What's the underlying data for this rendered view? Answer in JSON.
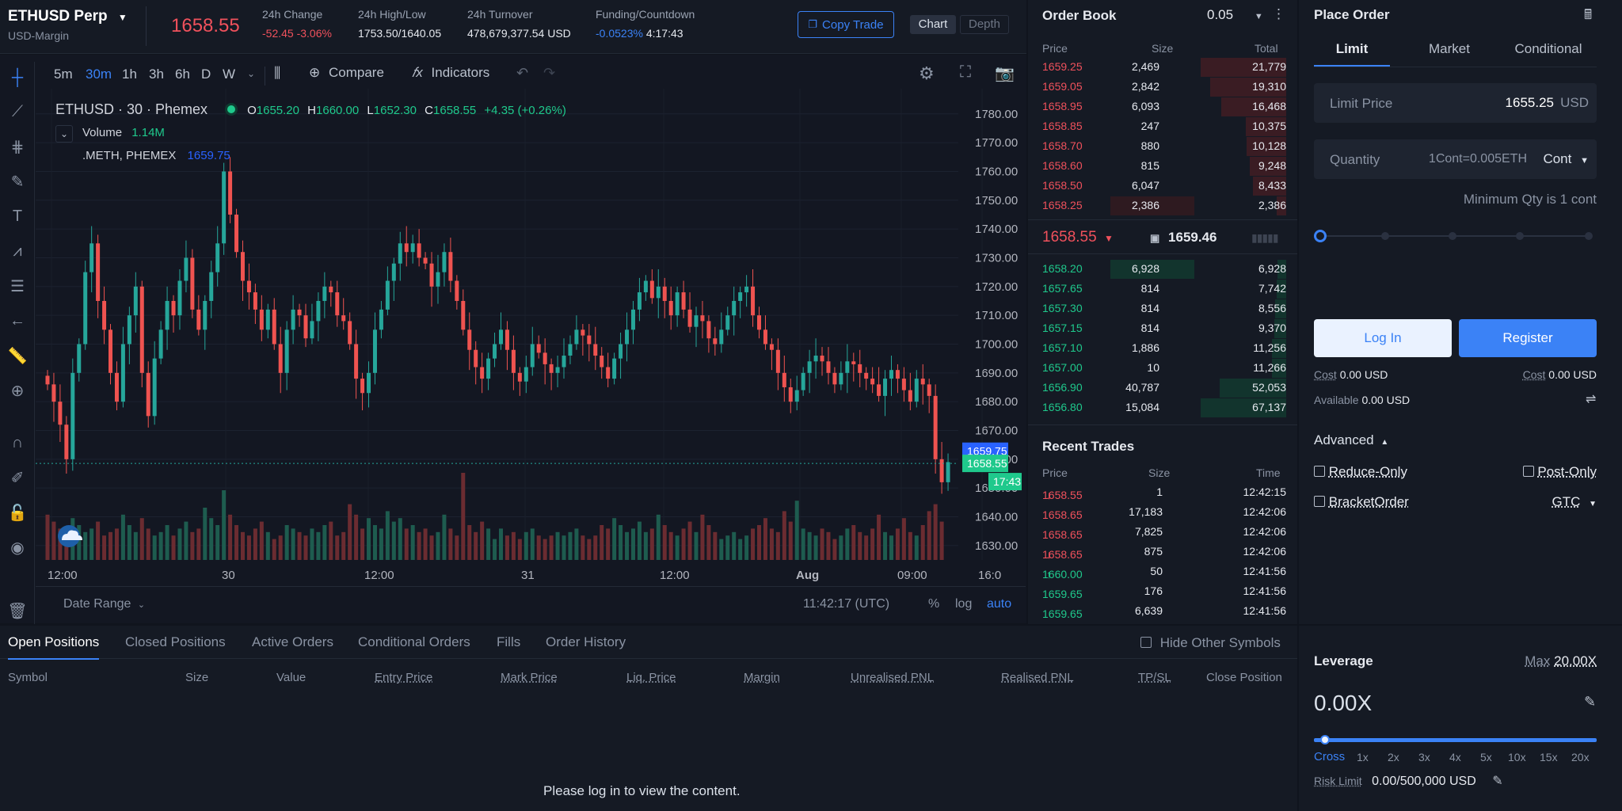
{
  "header": {
    "symbol": "ETHUSD Perp",
    "margin": "USD-Margin",
    "last_price": "1658.55",
    "stats": [
      {
        "label": "24h Change",
        "value": "-52.45 -3.06%",
        "tone": "red"
      },
      {
        "label": "24h High/Low",
        "value": "1753.50/1640.05",
        "tone": "white"
      },
      {
        "label": "24h Turnover",
        "value": "478,679,377.54 USD",
        "tone": "white"
      },
      {
        "label": "Funding/Countdown",
        "value_a": "-0.0523%",
        "value_b": "4:17:43"
      }
    ],
    "copy_trade": "Copy Trade",
    "chart_tab": "Chart",
    "depth_tab": "Depth"
  },
  "chart_toolbar": {
    "timeframes": [
      "5m",
      "30m",
      "1h",
      "3h",
      "6h",
      "D",
      "W"
    ],
    "active": "30m",
    "compare": "Compare",
    "indicators": "Indicators"
  },
  "legend": {
    "title": "ETHUSD · 30 · Phemex",
    "o_label": "O",
    "o": "1655.20",
    "h_label": "H",
    "h": "1660.00",
    "l_label": "L",
    "l": "1652.30",
    "c_label": "C",
    "c": "1658.55",
    "chg": "+4.35 (+0.26%)",
    "volume_label": "Volume",
    "volume": "1.14M",
    "meth_label": ".METH, PHEMEX",
    "meth": "1659.75"
  },
  "chart_data": {
    "type": "candlestick",
    "ylim": [
      1625,
      1786
    ],
    "y_ticks": [
      "1780.00",
      "1770.00",
      "1760.00",
      "1750.00",
      "1740.00",
      "1730.00",
      "1720.00",
      "1710.00",
      "1700.00",
      "1690.00",
      "1680.00",
      "1670.00",
      "1660.00",
      "1650.00",
      "1640.00",
      "1630.00"
    ],
    "x_ticks": [
      "12:00",
      "30",
      "12:00",
      "31",
      "12:00",
      "Aug",
      "09:00",
      "16:0"
    ],
    "price_tags": [
      {
        "label": "1659.75",
        "color": "#2962ff"
      },
      {
        "label": "1658.55",
        "color": "#1fc98c"
      },
      {
        "label": "17:43",
        "color": "#1fc98c"
      }
    ],
    "closes": [
      1686,
      1680,
      1672,
      1660,
      1690,
      1700,
      1725,
      1735,
      1715,
      1705,
      1690,
      1680,
      1700,
      1710,
      1720,
      1690,
      1675,
      1695,
      1705,
      1715,
      1710,
      1722,
      1730,
      1712,
      1705,
      1715,
      1725,
      1735,
      1760,
      1745,
      1732,
      1722,
      1718,
      1712,
      1705,
      1712,
      1700,
      1690,
      1705,
      1712,
      1710,
      1702,
      1708,
      1715,
      1720,
      1718,
      1710,
      1708,
      1700,
      1688,
      1683,
      1690,
      1705,
      1712,
      1722,
      1728,
      1735,
      1732,
      1735,
      1730,
      1728,
      1720,
      1725,
      1732,
      1722,
      1715,
      1705,
      1698,
      1692,
      1688,
      1695,
      1700,
      1705,
      1698,
      1690,
      1687,
      1692,
      1700,
      1697,
      1693,
      1690,
      1692,
      1696,
      1700,
      1705,
      1703,
      1700,
      1696,
      1692,
      1688,
      1695,
      1700,
      1705,
      1712,
      1718,
      1722,
      1716,
      1720,
      1715,
      1710,
      1718,
      1712,
      1706,
      1710,
      1708,
      1702,
      1700,
      1705,
      1710,
      1715,
      1718,
      1720,
      1710,
      1705,
      1700,
      1698,
      1690,
      1685,
      1680,
      1684,
      1690,
      1694,
      1696,
      1694,
      1690,
      1686,
      1690,
      1694,
      1693,
      1690,
      1688,
      1686,
      1682,
      1688,
      1691,
      1688,
      1684,
      1680,
      1688,
      1686,
      1682,
      1660,
      1652,
      1659
    ],
    "volumes": [
      1.3,
      1.1,
      0.9,
      0.6,
      1.2,
      1.0,
      0.8,
      0.9,
      1.1,
      0.7,
      0.8,
      0.9,
      1.3,
      1.0,
      0.8,
      1.2,
      0.9,
      0.7,
      0.8,
      1.0,
      0.7,
      0.9,
      1.1,
      0.8,
      0.9,
      1.5,
      1.2,
      1.0,
      2.0,
      1.3,
      1.0,
      0.8,
      0.7,
      0.9,
      1.1,
      0.8,
      0.6,
      0.7,
      1.0,
      0.9,
      0.8,
      0.7,
      0.9,
      0.8,
      1.0,
      1.1,
      0.7,
      0.8,
      1.6,
      1.3,
      0.9,
      1.2,
      1.0,
      0.9,
      1.4,
      1.1,
      1.2,
      0.9,
      1.0,
      0.8,
      0.9,
      0.7,
      0.8,
      1.3,
      0.9,
      0.7,
      2.5,
      1.0,
      0.8,
      1.1,
      0.9,
      0.6,
      0.9,
      0.7,
      0.8,
      0.6,
      0.8,
      0.9,
      0.7,
      0.6,
      0.7,
      0.8,
      0.7,
      0.8,
      0.9,
      0.7,
      0.6,
      0.7,
      1.0,
      0.9,
      1.2,
      1.0,
      0.8,
      0.9,
      1.1,
      0.8,
      0.9,
      1.3,
      1.0,
      0.8,
      0.7,
      0.9,
      1.1,
      0.8,
      1.3,
      1.0,
      0.8,
      0.6,
      0.7,
      0.8,
      0.6,
      0.7,
      0.9,
      1.0,
      1.2,
      0.9,
      0.8,
      1.4,
      1.1,
      1.7,
      0.9,
      0.8,
      0.7,
      0.9,
      0.8,
      0.6,
      0.7,
      0.9,
      1.0,
      0.8,
      0.7,
      0.9,
      1.3,
      0.8,
      0.7,
      0.9,
      1.2,
      0.8,
      0.7,
      1.0,
      1.4,
      1.6,
      1.1
    ]
  },
  "chart_bottom": {
    "date_range": "Date Range",
    "time": "11:42:17 (UTC)",
    "pct": "%",
    "log": "log",
    "auto": "auto"
  },
  "order_book": {
    "title": "Order Book",
    "step": "0.05",
    "cols": [
      "Price",
      "Size",
      "Total"
    ],
    "asks": [
      [
        "1659.25",
        "2,469",
        "21,779"
      ],
      [
        "1659.05",
        "2,842",
        "19,310"
      ],
      [
        "1658.95",
        "6,093",
        "16,468"
      ],
      [
        "1658.85",
        "247",
        "10,375"
      ],
      [
        "1658.70",
        "880",
        "10,128"
      ],
      [
        "1658.60",
        "815",
        "9,248"
      ],
      [
        "1658.50",
        "6,047",
        "8,433"
      ],
      [
        "1658.25",
        "2,386",
        "2,386"
      ]
    ],
    "ask_totals": [
      21779,
      19310,
      16468,
      10375,
      10128,
      9248,
      8433,
      2386
    ],
    "mid_price": "1658.55",
    "mark_price": "1659.46",
    "bids": [
      [
        "1658.20",
        "6,928",
        "6,928"
      ],
      [
        "1657.65",
        "814",
        "7,742"
      ],
      [
        "1657.30",
        "814",
        "8,556"
      ],
      [
        "1657.15",
        "814",
        "9,370"
      ],
      [
        "1657.10",
        "1,886",
        "11,256"
      ],
      [
        "1657.00",
        "10",
        "11,266"
      ],
      [
        "1656.90",
        "40,787",
        "52,053"
      ],
      [
        "1656.80",
        "15,084",
        "67,137"
      ]
    ],
    "bid_totals": [
      6928,
      7742,
      8556,
      9370,
      11256,
      11266,
      52053,
      67137
    ]
  },
  "trades": {
    "title": "Recent Trades",
    "cols": [
      "Price",
      "Size",
      "Time"
    ],
    "rows": [
      [
        "1658.55",
        "1",
        "12:42:15",
        "red",
        "↓"
      ],
      [
        "1658.65",
        "17,183",
        "12:42:06",
        "red",
        ""
      ],
      [
        "1658.65",
        "7,825",
        "12:42:06",
        "red",
        ""
      ],
      [
        "1658.65",
        "875",
        "12:42:06",
        "red",
        "↓"
      ],
      [
        "1660.00",
        "50",
        "12:41:56",
        "green",
        "↑"
      ],
      [
        "1659.65",
        "176",
        "12:41:56",
        "green",
        ""
      ],
      [
        "1659.65",
        "6,639",
        "12:41:56",
        "green",
        ""
      ]
    ]
  },
  "place_order": {
    "title": "Place Order",
    "tabs": [
      "Limit",
      "Market",
      "Conditional"
    ],
    "limit_label": "Limit Price",
    "limit_value": "1655.25",
    "limit_unit": "USD",
    "qty_label": "Quantity",
    "qty_value": "1Cont=0.005ETH",
    "qty_unit": "Cont",
    "min_qty": "Minimum Qty is 1 cont",
    "login": "Log In",
    "register": "Register",
    "cost_label": "Cost",
    "cost_left": "0.00 USD",
    "cost_right": "0.00 USD",
    "available_label": "Available",
    "available": "0.00 USD",
    "advanced": "Advanced",
    "reduce_only": "Reduce-Only",
    "post_only": "Post-Only",
    "bracket": "BracketOrder",
    "gtc": "GTC"
  },
  "positions": {
    "tabs": [
      "Open Positions",
      "Closed Positions",
      "Active Orders",
      "Conditional Orders",
      "Fills",
      "Order History"
    ],
    "hide_other": "Hide Other Symbols",
    "cols": [
      "Symbol",
      "Size",
      "Value",
      "Entry Price",
      "Mark Price",
      "Liq. Price",
      "Margin",
      "Unrealised PNL",
      "Realised PNL",
      "TP/SL",
      "Close Position"
    ],
    "empty": "Please log in to view the content."
  },
  "leverage": {
    "title": "Leverage",
    "max_label": "Max",
    "max": "20.00X",
    "value": "0.00X",
    "cross": "Cross",
    "ticks": [
      "1x",
      "2x",
      "3x",
      "4x",
      "5x",
      "10x",
      "15x",
      "20x"
    ],
    "risk_label": "Risk Limit",
    "risk": "0.00/500,000 USD"
  }
}
